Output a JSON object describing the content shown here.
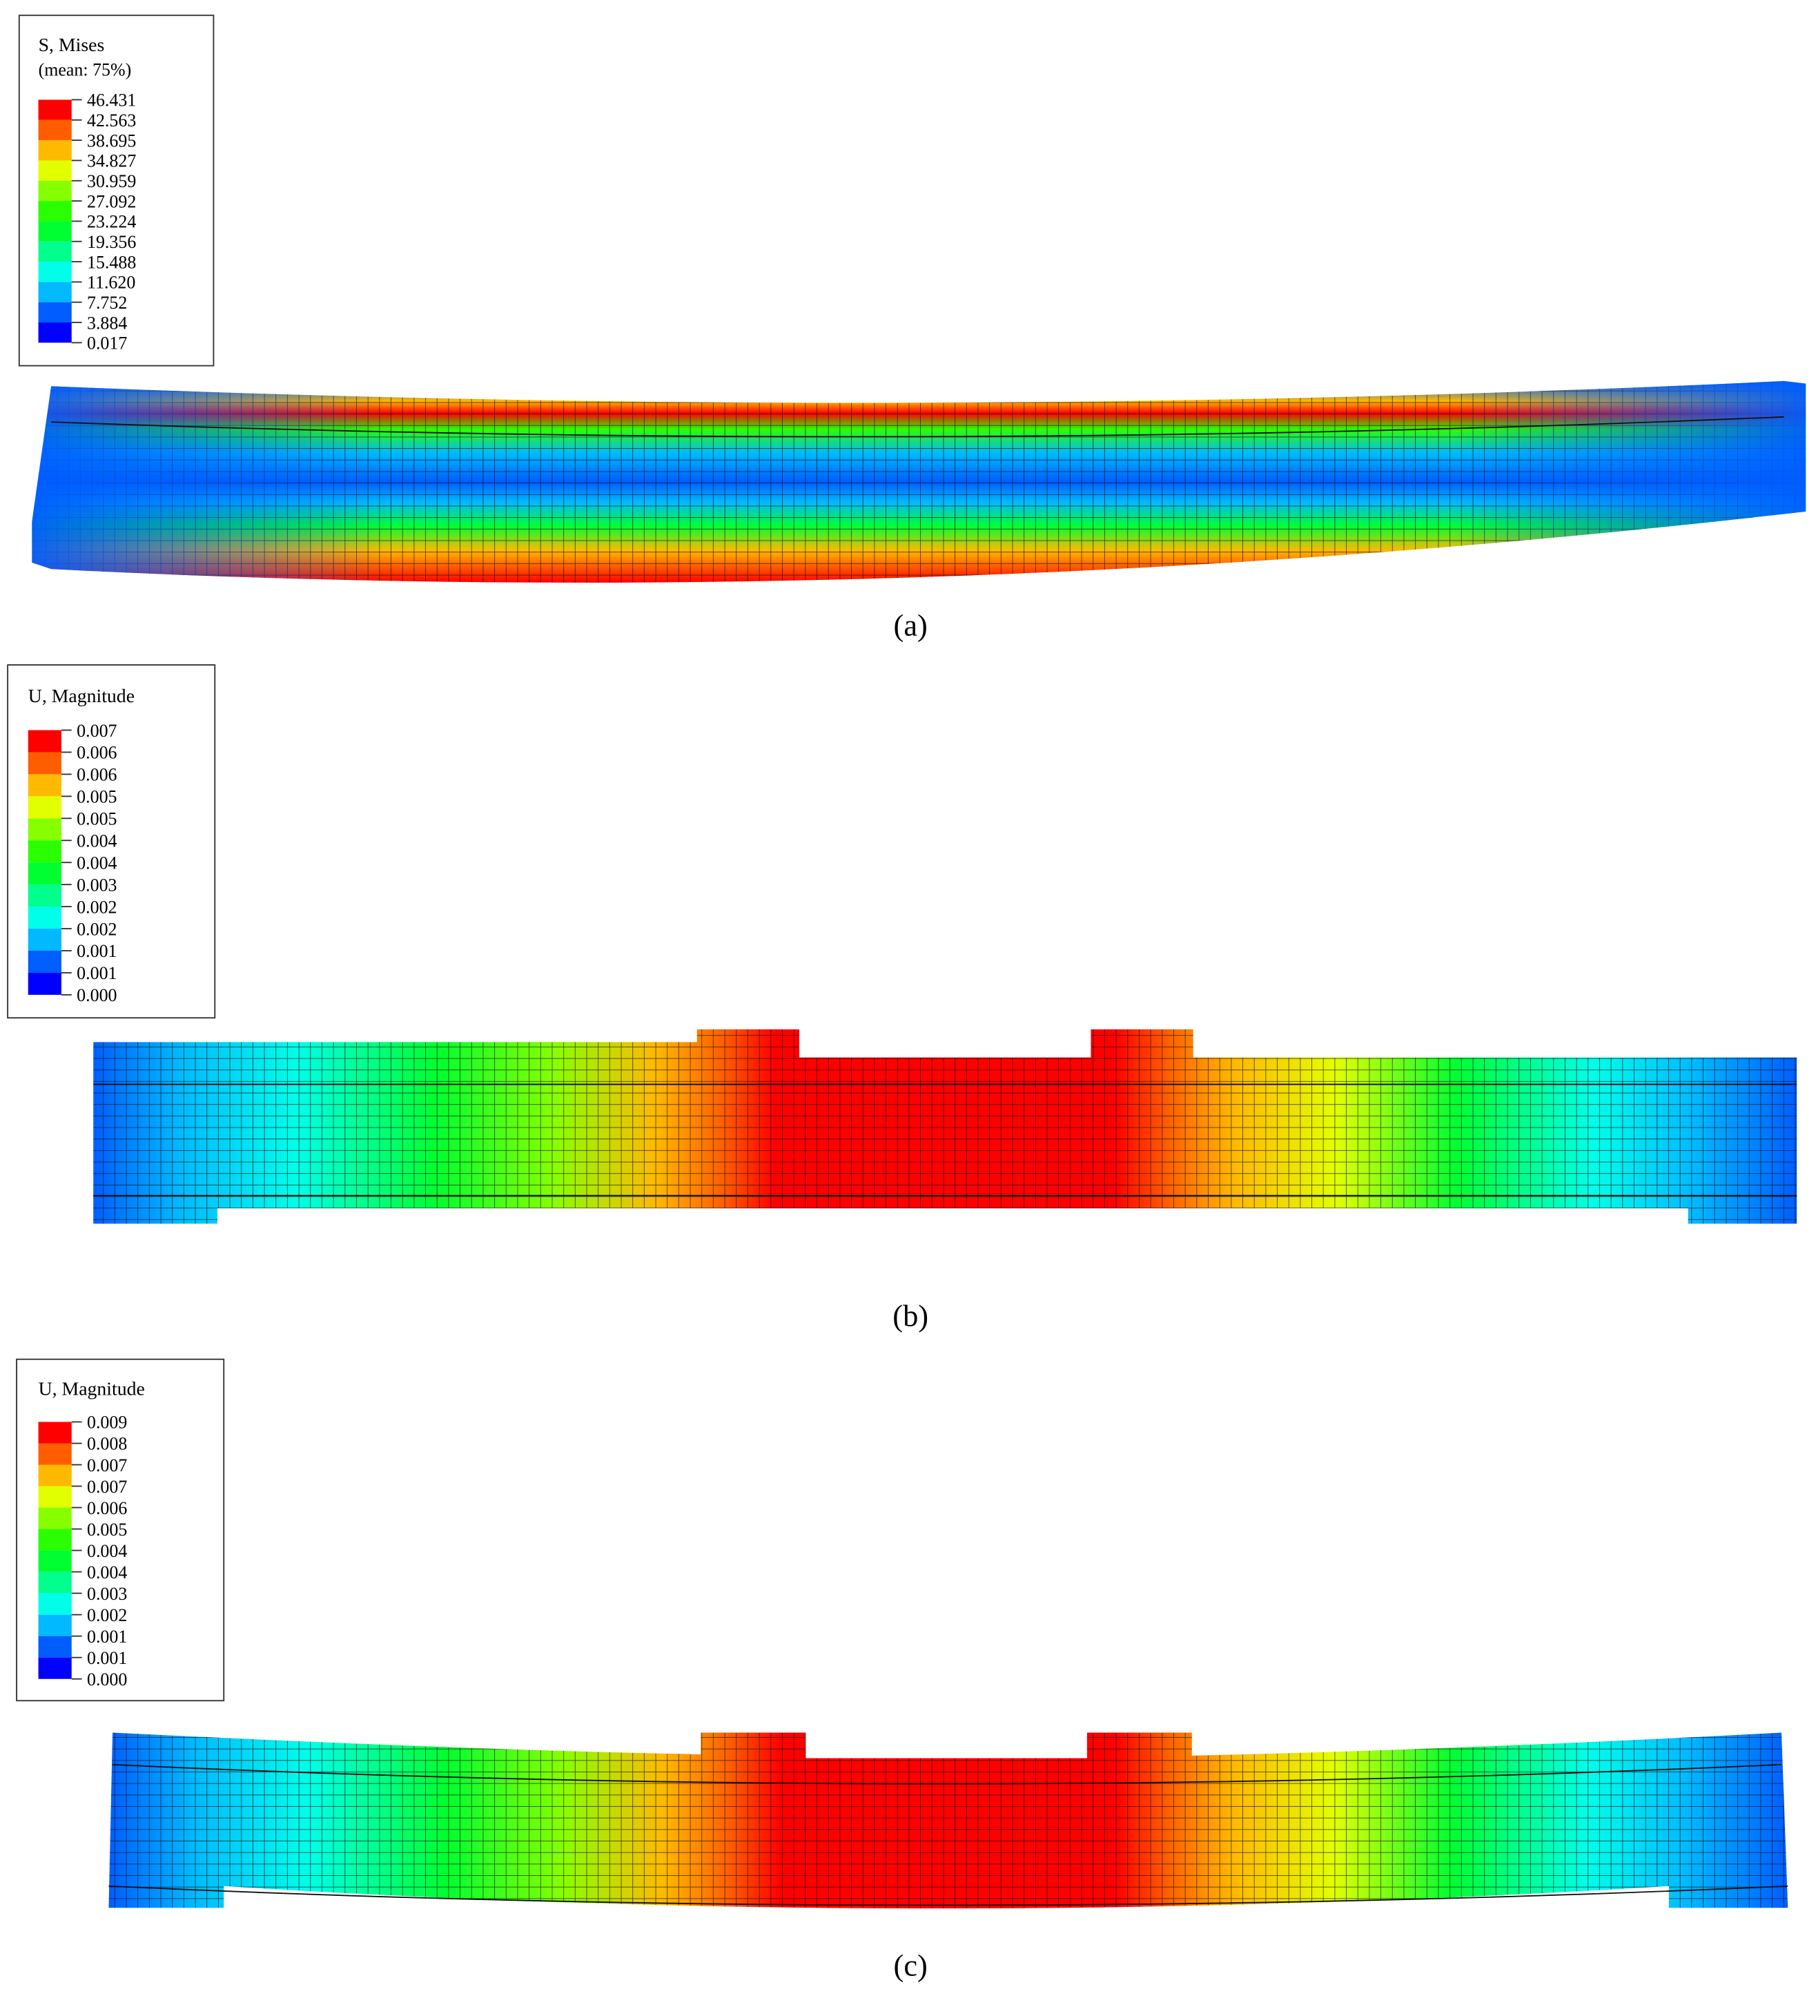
{
  "panels": [
    {
      "legend": {
        "title": "S, Mises",
        "subtitle": "(mean: 75%)",
        "labels": [
          "46.431",
          "42.563",
          "38.695",
          "34.827",
          "30.959",
          "27.092",
          "23.224",
          "19.356",
          "15.488",
          "11.620",
          "7.752",
          "3.884",
          "0.017"
        ]
      },
      "caption": "(a)"
    },
    {
      "legend": {
        "title": "U, Magnitude",
        "labels": [
          "0.007",
          "0.006",
          "0.006",
          "0.005",
          "0.005",
          "0.004",
          "0.004",
          "0.003",
          "0.002",
          "0.002",
          "0.001",
          "0.001",
          "0.000"
        ]
      },
      "caption": "(b)"
    },
    {
      "legend": {
        "title": "U, Magnitude",
        "labels": [
          "0.009",
          "0.008",
          "0.007",
          "0.007",
          "0.006",
          "0.005",
          "0.004",
          "0.004",
          "0.003",
          "0.002",
          "0.001",
          "0.001",
          "0.000"
        ]
      },
      "caption": "(c)"
    }
  ],
  "colormap": [
    "#ff0000",
    "#ff5d00",
    "#ffb900",
    "#e2ff00",
    "#86ff00",
    "#2aff00",
    "#00ff31",
    "#00ff8d",
    "#00ffe8",
    "#00b9ff",
    "#005dff",
    "#0000ff"
  ]
}
